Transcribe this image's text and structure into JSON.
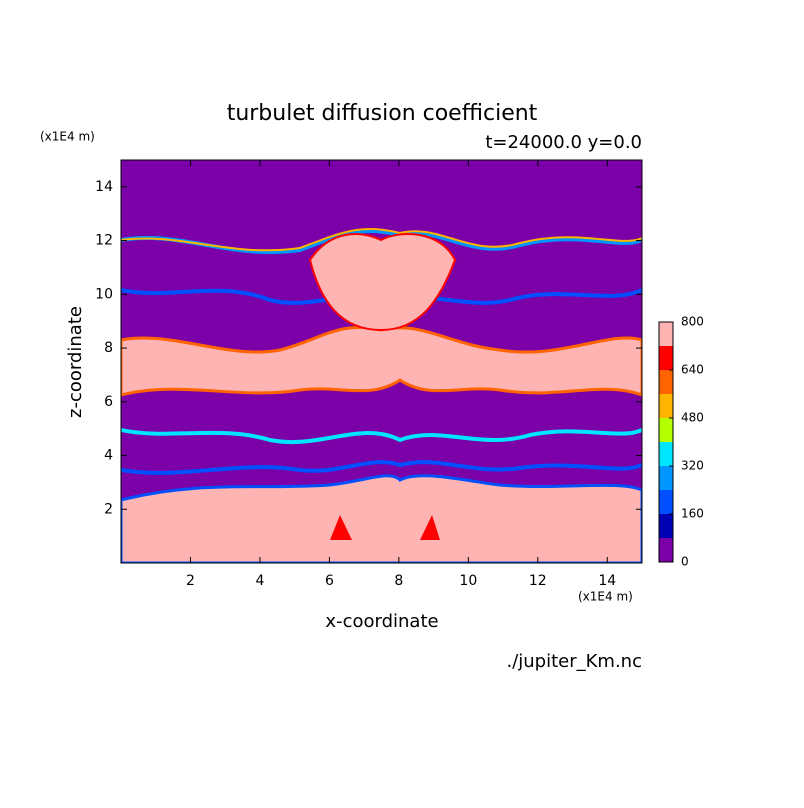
{
  "chart_data": {
    "type": "contour",
    "title": "turbulet diffusion coefficient",
    "subtitle": "t=24000.0 y=0.0",
    "x_label": "x-coordinate",
    "y_label": "z-coordinate",
    "x_unit": "(x1E4 m)",
    "y_unit": "(x1E4 m)",
    "source": "./jupiter_Km.nc",
    "xlim": [
      0,
      15
    ],
    "xticks": [
      2,
      4,
      6,
      8,
      10,
      12,
      14
    ],
    "ylim": [
      0,
      15
    ],
    "yticks": [
      2,
      4,
      6,
      8,
      10,
      12,
      14
    ],
    "levels": [
      0,
      80,
      160,
      240,
      320,
      400,
      480,
      560,
      640,
      720,
      800
    ],
    "colors": [
      "#7b00a8",
      "#0000b4",
      "#0050ff",
      "#0096ff",
      "#00e6ff",
      "#b4ff00",
      "#ffb400",
      "#ff6400",
      "#ff0000",
      "#ffb4b4"
    ],
    "colorbar_ticks": [
      0,
      160,
      320,
      480,
      640,
      800
    ]
  }
}
